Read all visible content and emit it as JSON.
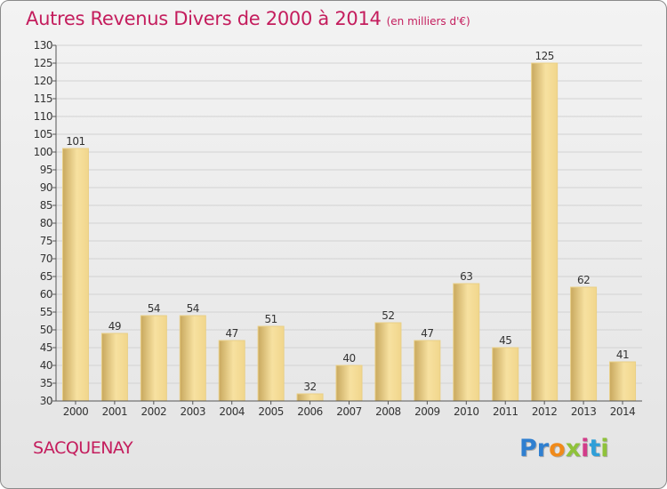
{
  "header": {
    "title": "Autres Revenus Divers de 2000 à 2014",
    "subtitle": "(en milliers d'€)"
  },
  "footer": {
    "commune": "SACQUENAY",
    "logo": {
      "letters": [
        "P",
        "r",
        "o",
        "x",
        "i",
        "t",
        "i"
      ],
      "colors": [
        "#2f7fd0",
        "#2f7fd0",
        "#f08a1a",
        "#8fc23a",
        "#d23c8a",
        "#2f9fd8",
        "#8fc23a"
      ]
    }
  },
  "chart_data": {
    "type": "bar",
    "categories": [
      "2000",
      "2001",
      "2002",
      "2003",
      "2004",
      "2005",
      "2006",
      "2007",
      "2008",
      "2009",
      "2010",
      "2011",
      "2012",
      "2013",
      "2014"
    ],
    "values": [
      101,
      49,
      54,
      54,
      47,
      51,
      32,
      40,
      52,
      47,
      63,
      45,
      125,
      62,
      41
    ],
    "ylim": [
      30,
      130
    ],
    "yticks": [
      30,
      35,
      40,
      45,
      50,
      55,
      60,
      65,
      70,
      75,
      80,
      85,
      90,
      95,
      100,
      105,
      110,
      115,
      120,
      125,
      130
    ],
    "grid": true,
    "data_labels": true,
    "colors": {
      "bar_light": "#f7e1a0",
      "bar_dark": "#c8a85e",
      "grid": "#d2d2d2",
      "axis": "#555555"
    }
  }
}
